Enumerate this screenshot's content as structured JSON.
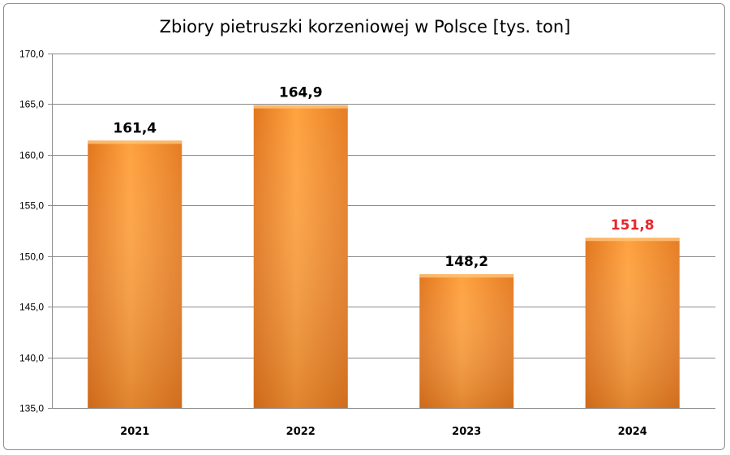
{
  "chart_data": {
    "type": "bar",
    "title": "Zbiory pietruszki korzeniowej w Polsce [tys. ton]",
    "xlabel": "",
    "ylabel": "",
    "categories": [
      "2021",
      "2022",
      "2023",
      "2024"
    ],
    "values": [
      161.4,
      164.9,
      148.2,
      151.8
    ],
    "value_labels": [
      "161,4",
      "164,9",
      "148,2",
      "151,8"
    ],
    "ylim": [
      135,
      170
    ],
    "yticks": [
      135,
      140,
      145,
      150,
      155,
      160,
      165,
      170
    ],
    "ytick_labels": [
      "135,0",
      "140,0",
      "145,0",
      "150,0",
      "155,0",
      "160,0",
      "165,0",
      "170,0"
    ],
    "grid": true,
    "bar_color": "#f7962f",
    "label_colors": [
      "#000000",
      "#000000",
      "#000000",
      "#e8262d"
    ],
    "gridline_color": "#8c8c8c"
  }
}
